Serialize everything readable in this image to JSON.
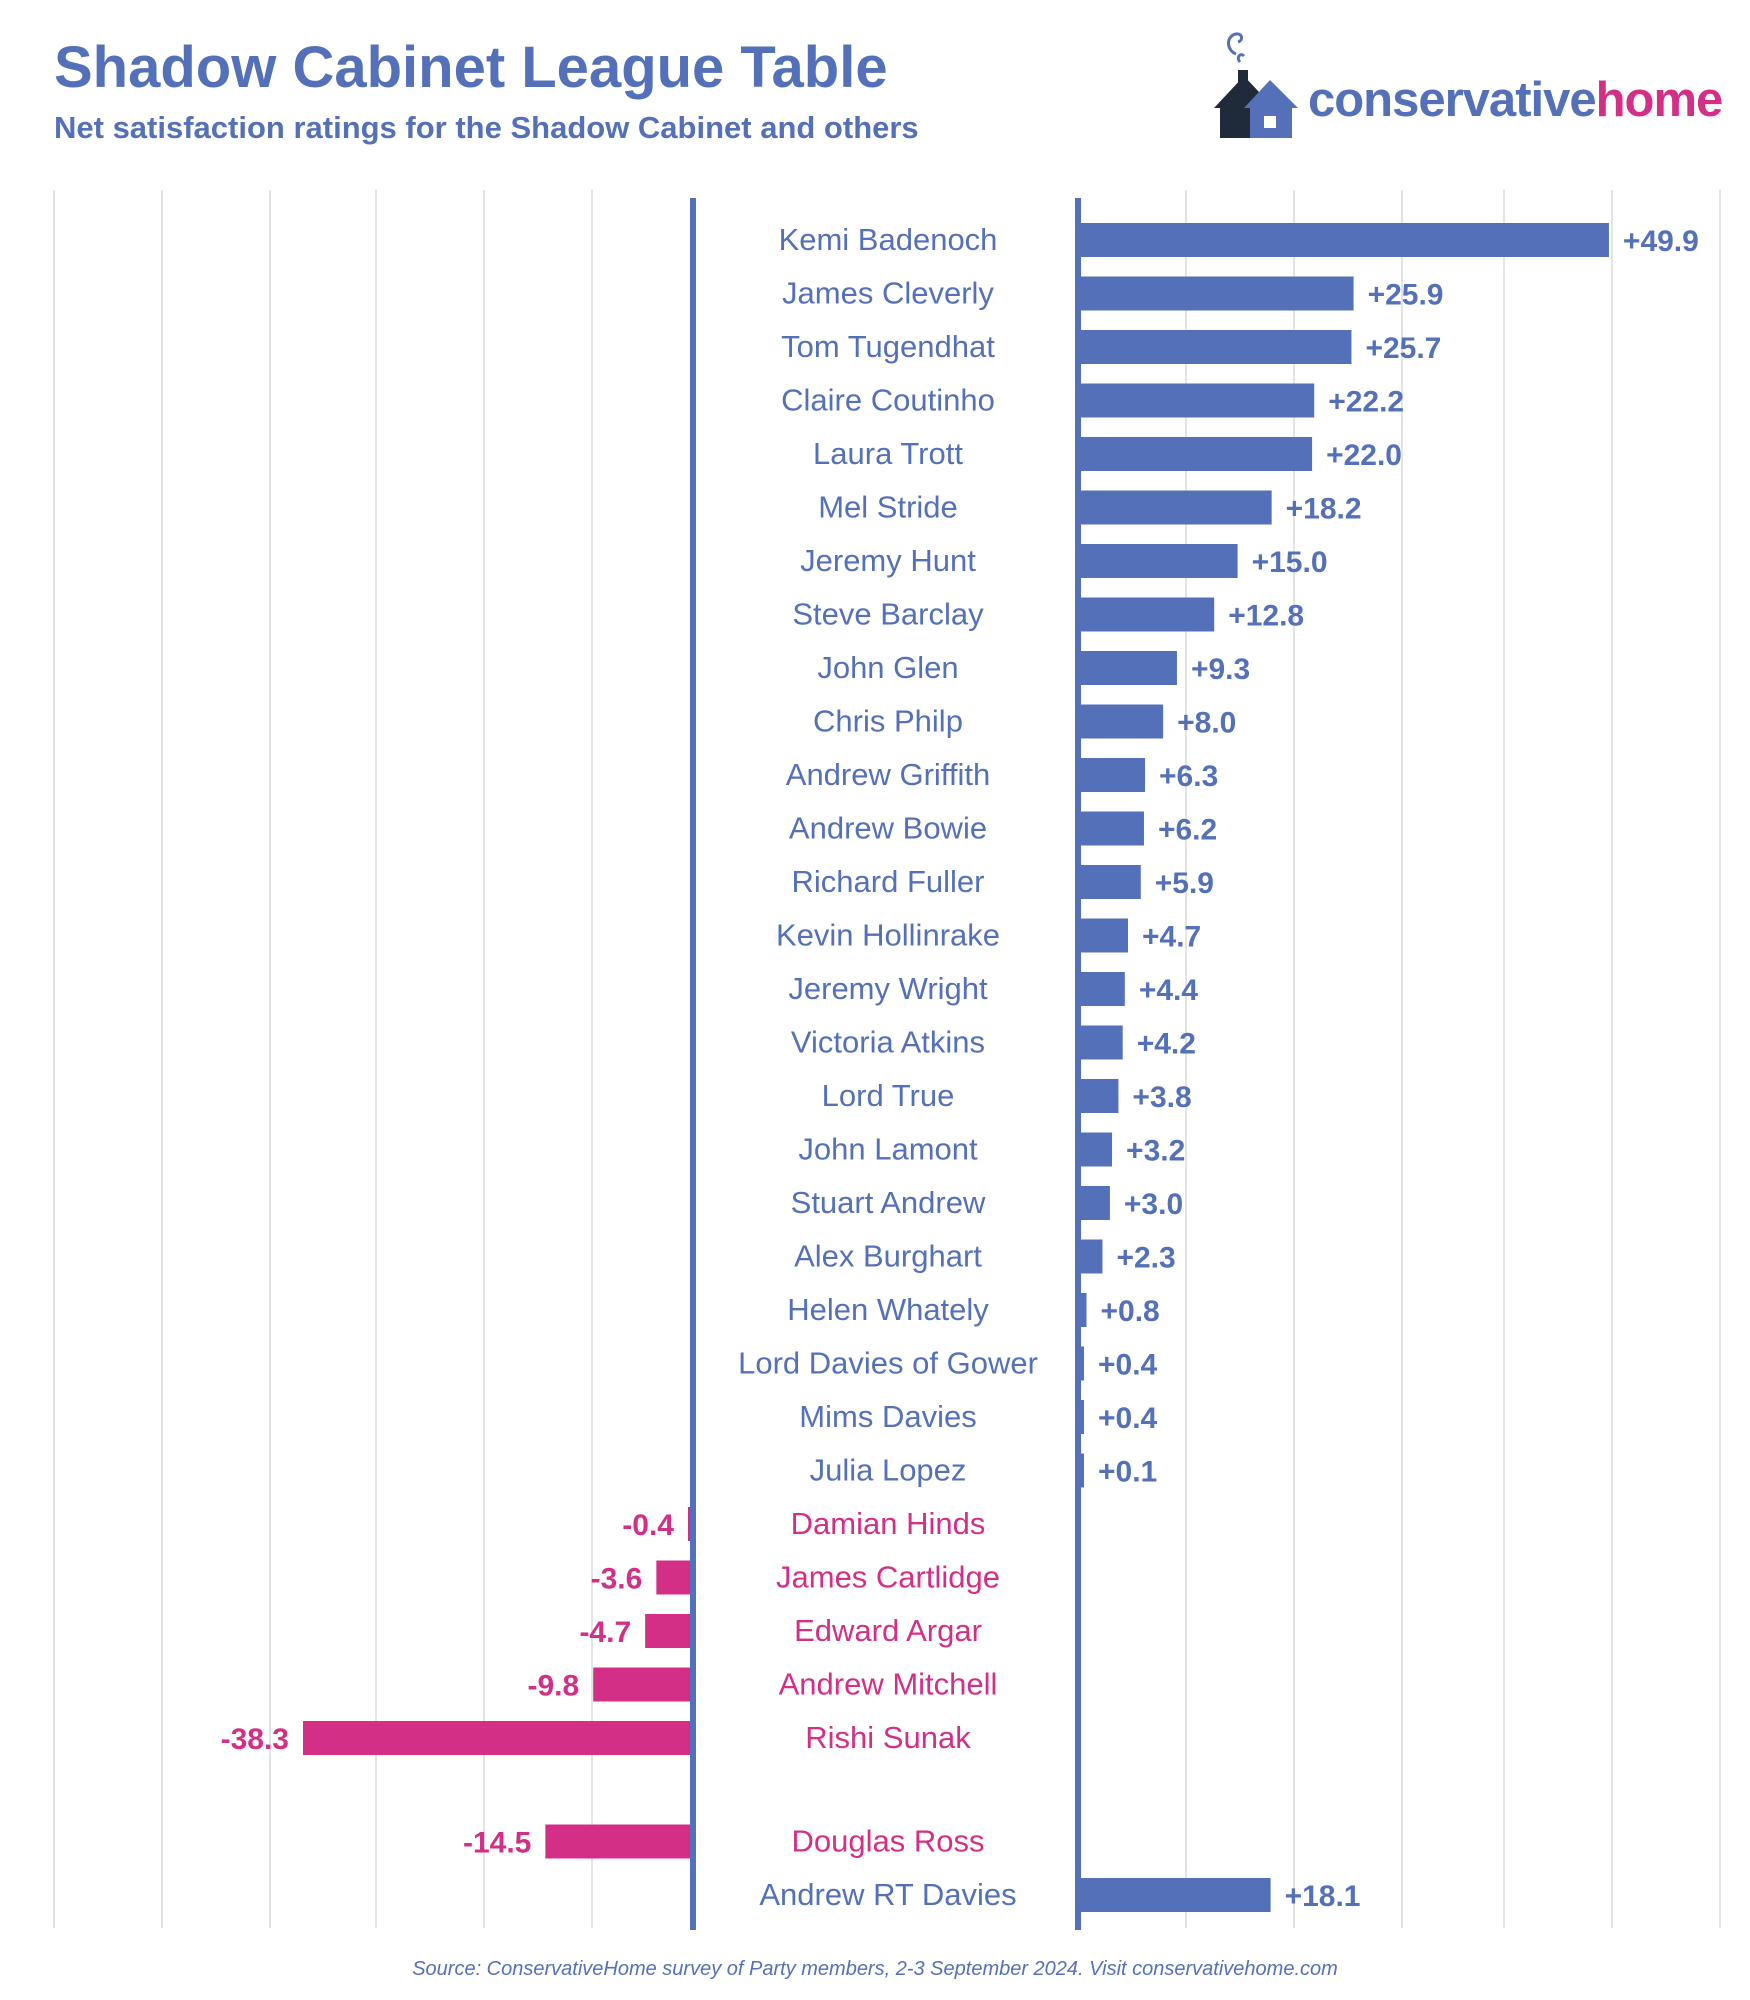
{
  "header": {
    "title": "Shadow Cabinet League Table",
    "subtitle": "Net satisfaction ratings for the Shadow Cabinet and others"
  },
  "logo": {
    "word_part1": "conservative",
    "word_part2": "home",
    "icon": "house-with-chimney-icon",
    "color_primary": "#5470b8",
    "color_accent": "#d42f87"
  },
  "footer": {
    "source": "Source: ConservativeHome survey of Party members, 2-3 September 2024. Visit conservativehome.com"
  },
  "chart_data": {
    "type": "bar",
    "orientation": "horizontal",
    "grid": true,
    "colors": {
      "positive": "#5470b8",
      "negative": "#d42f87"
    },
    "categories": [
      "Kemi Badenoch",
      "James Cleverly",
      "Tom Tugendhat",
      "Claire Coutinho",
      "Laura Trott",
      "Mel Stride",
      "Jeremy Hunt",
      "Steve Barclay",
      "John Glen",
      "Chris Philp",
      "Andrew Griffith",
      "Andrew Bowie",
      "Richard Fuller",
      "Kevin Hollinrake",
      "Jeremy Wright",
      "Victoria Atkins",
      "Lord True",
      "John Lamont",
      "Stuart Andrew",
      "Alex Burghart",
      "Helen Whately",
      "Lord Davies of Gower",
      "Mims Davies",
      "Julia Lopez",
      "Damian Hinds",
      "James Cartlidge",
      "Edward Argar",
      "Andrew Mitchell",
      "Rishi Sunak",
      "Douglas Ross",
      "Andrew RT Davies"
    ],
    "values": [
      49.9,
      25.9,
      25.7,
      22.2,
      22.0,
      18.2,
      15.0,
      12.8,
      9.3,
      8.0,
      6.3,
      6.2,
      5.9,
      4.7,
      4.4,
      4.2,
      3.8,
      3.2,
      3.0,
      2.3,
      0.8,
      0.4,
      0.4,
      0.1,
      -0.4,
      -3.6,
      -4.7,
      -9.8,
      -38.3,
      -14.5,
      18.1
    ],
    "value_labels": [
      "+49.9",
      "+25.9",
      "+25.7",
      "+22.2",
      "+22.0",
      "+18.2",
      "+15.0",
      "+12.8",
      "+9.3",
      "+8.0",
      "+6.3",
      "+6.2",
      "+5.9",
      "+4.7",
      "+4.4",
      "+4.2",
      "+3.8",
      "+3.2",
      "+3.0",
      "+2.3",
      "+0.8",
      "+0.4",
      "+0.4",
      "+0.1",
      "-0.4",
      "-3.6",
      "-4.7",
      "-9.8",
      "-38.3",
      "-14.5",
      "+18.1"
    ],
    "xlim_positive": [
      0,
      60
    ],
    "xlim_negative": [
      -60,
      0
    ]
  }
}
